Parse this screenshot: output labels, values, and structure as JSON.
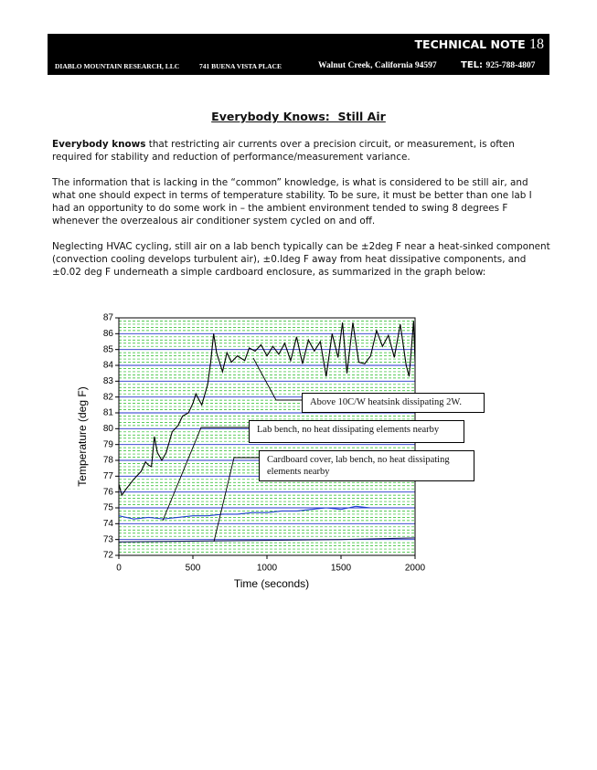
{
  "header": {
    "title": "TECHNICAL NOTE",
    "number": "18",
    "company": "DIABLO MOUNTAIN RESEARCH, LLC",
    "address": "741 BUENA VISTA PLACE",
    "city": "Walnut Creek, California 94597",
    "phone_label": "TEL:",
    "phone": "925-788-4807"
  },
  "heading": "Everybody Knows:  Still Air",
  "paragraphs": [
    {
      "lead": "Everybody knows",
      "text": "that restricting air currents over a precision circuit, or measurement, is often required for stability and reduction of performance/measurement variance."
    },
    {
      "text": "The information that is lacking in the “common” knowledge, is what is considered to be still air, and what one should expect in terms of temperature stability.  To be sure, it must be better than one lab I had an opportunity to do some work in – the ambient environment tended to swing 8 degrees F whenever the overzealous air conditioner system cycled on and off."
    },
    {
      "text": "Neglecting HVAC cycling, still air on a lab bench typically can be ±2deg F near a heat-sinked component (convection cooling develops turbulent air), ±0.ldeg F away from heat dissipative components, and ±0.02 deg F underneath a simple cardboard enclosure, as summarized in the graph below:"
    }
  ],
  "chart_data": {
    "type": "line",
    "x_label": "Time (seconds)",
    "y_label": "Temperature (deg F)",
    "xlim": [
      0,
      2000
    ],
    "xticks": [
      0,
      500,
      1000,
      1500,
      2000
    ],
    "ylim": [
      72,
      87
    ],
    "yticks": [
      72,
      73,
      74,
      75,
      76,
      77,
      78,
      79,
      80,
      81,
      82,
      83,
      84,
      85,
      86,
      87
    ],
    "grid": true,
    "series": [
      {
        "color": "#000000",
        "x": [
          0,
          20,
          50,
          100,
          150,
          180,
          200,
          220,
          240,
          260,
          290,
          320,
          360,
          400,
          430,
          470,
          500,
          520,
          560,
          600,
          620,
          640,
          660,
          700,
          730,
          760,
          800,
          850,
          880,
          920,
          960,
          1000,
          1040,
          1080,
          1120,
          1160,
          1200,
          1240,
          1280,
          1320,
          1360,
          1400,
          1440,
          1480,
          1510,
          1540,
          1580,
          1620,
          1660,
          1700,
          1740,
          1780,
          1820,
          1860,
          1900,
          1940,
          1960,
          1990,
          2000
        ],
        "values": [
          76.5,
          75.8,
          76.2,
          76.8,
          77.3,
          77.9,
          77.7,
          77.6,
          79.5,
          78.5,
          78,
          78.5,
          79.8,
          80.2,
          80.8,
          81,
          81.6,
          82.2,
          81.5,
          82.8,
          84.2,
          86,
          84.8,
          83.6,
          84.8,
          84.2,
          84.6,
          84.3,
          85.1,
          84.9,
          85.3,
          84.6,
          85.2,
          84.7,
          85.4,
          84.3,
          85.8,
          84.1,
          85.6,
          84.9,
          85.5,
          83.3,
          86,
          84.5,
          86.7,
          83.5,
          86.7,
          84.2,
          84.1,
          84.6,
          86.2,
          85.2,
          85.9,
          84.5,
          86.6,
          84,
          83.3,
          86.8,
          84.2
        ]
      },
      {
        "color": "#1f3fd0",
        "x": [
          0,
          100,
          200,
          300,
          400,
          500,
          600,
          700,
          800,
          900,
          1000,
          1100,
          1200,
          1300,
          1400,
          1500,
          1600,
          1700
        ],
        "values": [
          74.5,
          74.3,
          74.4,
          74.3,
          74.4,
          74.5,
          74.5,
          74.6,
          74.6,
          74.7,
          74.7,
          74.8,
          74.8,
          74.9,
          75,
          74.9,
          75.1,
          75
        ]
      },
      {
        "color": "#1a1a60",
        "x": [
          0,
          500,
          1000,
          1500,
          2000
        ],
        "values": [
          72.85,
          72.9,
          72.95,
          73,
          73.1
        ]
      }
    ],
    "annotations": [
      {
        "text": "Above 10C/W heatsink dissipating 2W."
      },
      {
        "text": "Lab bench, no heat dissipating elements nearby"
      },
      {
        "text": "Cardboard cover, lab bench, no heat dissipating elements nearby"
      }
    ]
  }
}
